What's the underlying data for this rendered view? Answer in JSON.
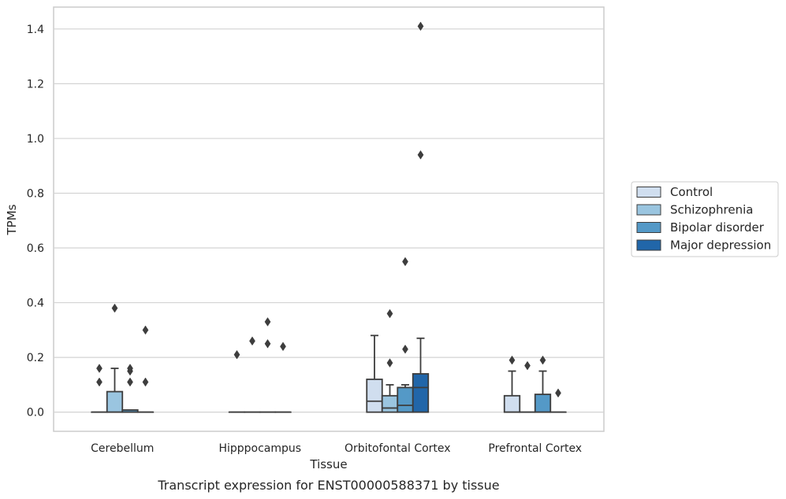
{
  "caption": "Transcript expression for ENST00000588371 by tissue",
  "chart_data": {
    "type": "box",
    "xlabel": "Tissue",
    "ylabel": "TPMs",
    "ylim": [
      -0.07,
      1.48
    ],
    "yticks": [
      0.0,
      0.2,
      0.4,
      0.6,
      0.8,
      1.0,
      1.2,
      1.4
    ],
    "ytick_labels": [
      "0.0",
      "0.2",
      "0.4",
      "0.6",
      "0.8",
      "1.0",
      "1.2",
      "1.4"
    ],
    "grid": "horizontal",
    "legend_position": "right",
    "categories": [
      "Cerebellum",
      "Hipppocampus",
      "Orbitofontal Cortex",
      "Prefrontal Cortex"
    ],
    "series": [
      {
        "name": "Control",
        "color": "#d0deef",
        "boxes": [
          {
            "q1": 0,
            "median": 0,
            "q3": 0,
            "whisker_low": 0,
            "whisker_high": 0,
            "outliers": [
              0.11,
              0.16
            ]
          },
          {
            "q1": 0,
            "median": 0,
            "q3": 0,
            "whisker_low": 0,
            "whisker_high": 0,
            "outliers": [
              0.21
            ]
          },
          {
            "q1": 0,
            "median": 0.04,
            "q3": 0.12,
            "whisker_low": 0,
            "whisker_high": 0.28,
            "outliers": []
          },
          {
            "q1": 0,
            "median": 0,
            "q3": 0.06,
            "whisker_low": 0,
            "whisker_high": 0.15,
            "outliers": [
              0.19
            ]
          }
        ]
      },
      {
        "name": "Schizophrenia",
        "color": "#9ac5e0",
        "boxes": [
          {
            "q1": 0,
            "median": 0,
            "q3": 0.075,
            "whisker_low": 0,
            "whisker_high": 0.16,
            "outliers": [
              0.38
            ]
          },
          {
            "q1": 0,
            "median": 0,
            "q3": 0,
            "whisker_low": 0,
            "whisker_high": 0,
            "outliers": [
              0.26
            ]
          },
          {
            "q1": 0,
            "median": 0.015,
            "q3": 0.06,
            "whisker_low": 0,
            "whisker_high": 0.1,
            "outliers": [
              0.18,
              0.36
            ]
          },
          {
            "q1": 0,
            "median": 0,
            "q3": 0,
            "whisker_low": 0,
            "whisker_high": 0,
            "outliers": [
              0.17
            ]
          }
        ]
      },
      {
        "name": "Bipolar disorder",
        "color": "#5499c7",
        "boxes": [
          {
            "q1": 0,
            "median": 0,
            "q3": 0.008,
            "whisker_low": 0,
            "whisker_high": 0.008,
            "outliers": [
              0.11,
              0.15,
              0.16
            ]
          },
          {
            "q1": 0,
            "median": 0,
            "q3": 0,
            "whisker_low": 0,
            "whisker_high": 0,
            "outliers": [
              0.25,
              0.33
            ]
          },
          {
            "q1": 0,
            "median": 0.025,
            "q3": 0.09,
            "whisker_low": 0,
            "whisker_high": 0.1,
            "outliers": [
              0.23,
              0.55
            ]
          },
          {
            "q1": 0,
            "median": 0,
            "q3": 0.065,
            "whisker_low": 0,
            "whisker_high": 0.15,
            "outliers": [
              0.19
            ]
          }
        ]
      },
      {
        "name": "Major depression",
        "color": "#2166a9",
        "boxes": [
          {
            "q1": 0,
            "median": 0,
            "q3": 0,
            "whisker_low": 0,
            "whisker_high": 0,
            "outliers": [
              0.11,
              0.3
            ]
          },
          {
            "q1": 0,
            "median": 0,
            "q3": 0,
            "whisker_low": 0,
            "whisker_high": 0,
            "outliers": [
              0.24
            ]
          },
          {
            "q1": 0,
            "median": 0.09,
            "q3": 0.14,
            "whisker_low": 0,
            "whisker_high": 0.27,
            "outliers": [
              0.94,
              1.41
            ]
          },
          {
            "q1": 0,
            "median": 0,
            "q3": 0,
            "whisker_low": 0,
            "whisker_high": 0,
            "outliers": [
              0.07
            ]
          }
        ]
      }
    ]
  }
}
